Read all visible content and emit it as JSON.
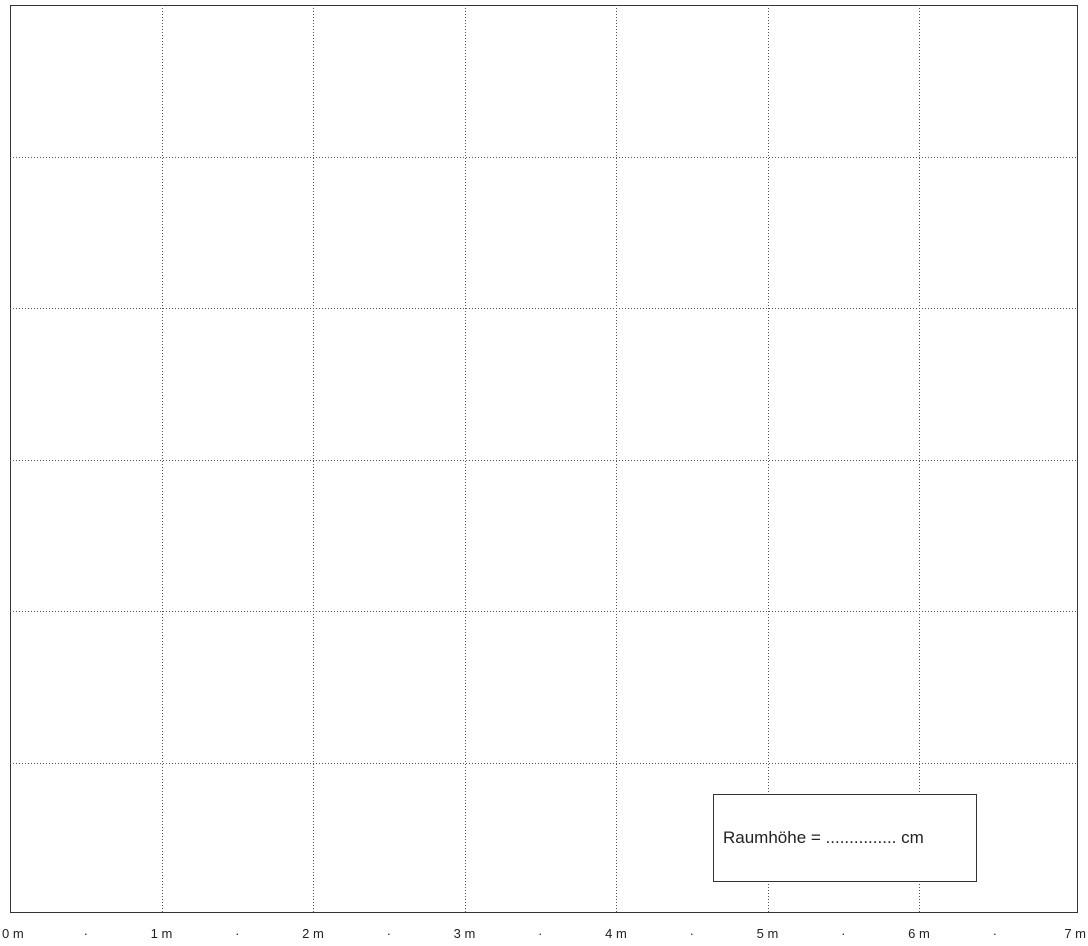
{
  "scale": {
    "labels": [
      "0 m",
      "1 m",
      "2 m",
      "3 m",
      "4 m",
      "5 m",
      "6 m",
      "7 m"
    ],
    "half_marker": "·"
  },
  "grid": {
    "columns_m": 7,
    "rows_m": 6
  },
  "room_height": {
    "label": "Raumhöhe = ............... cm"
  }
}
